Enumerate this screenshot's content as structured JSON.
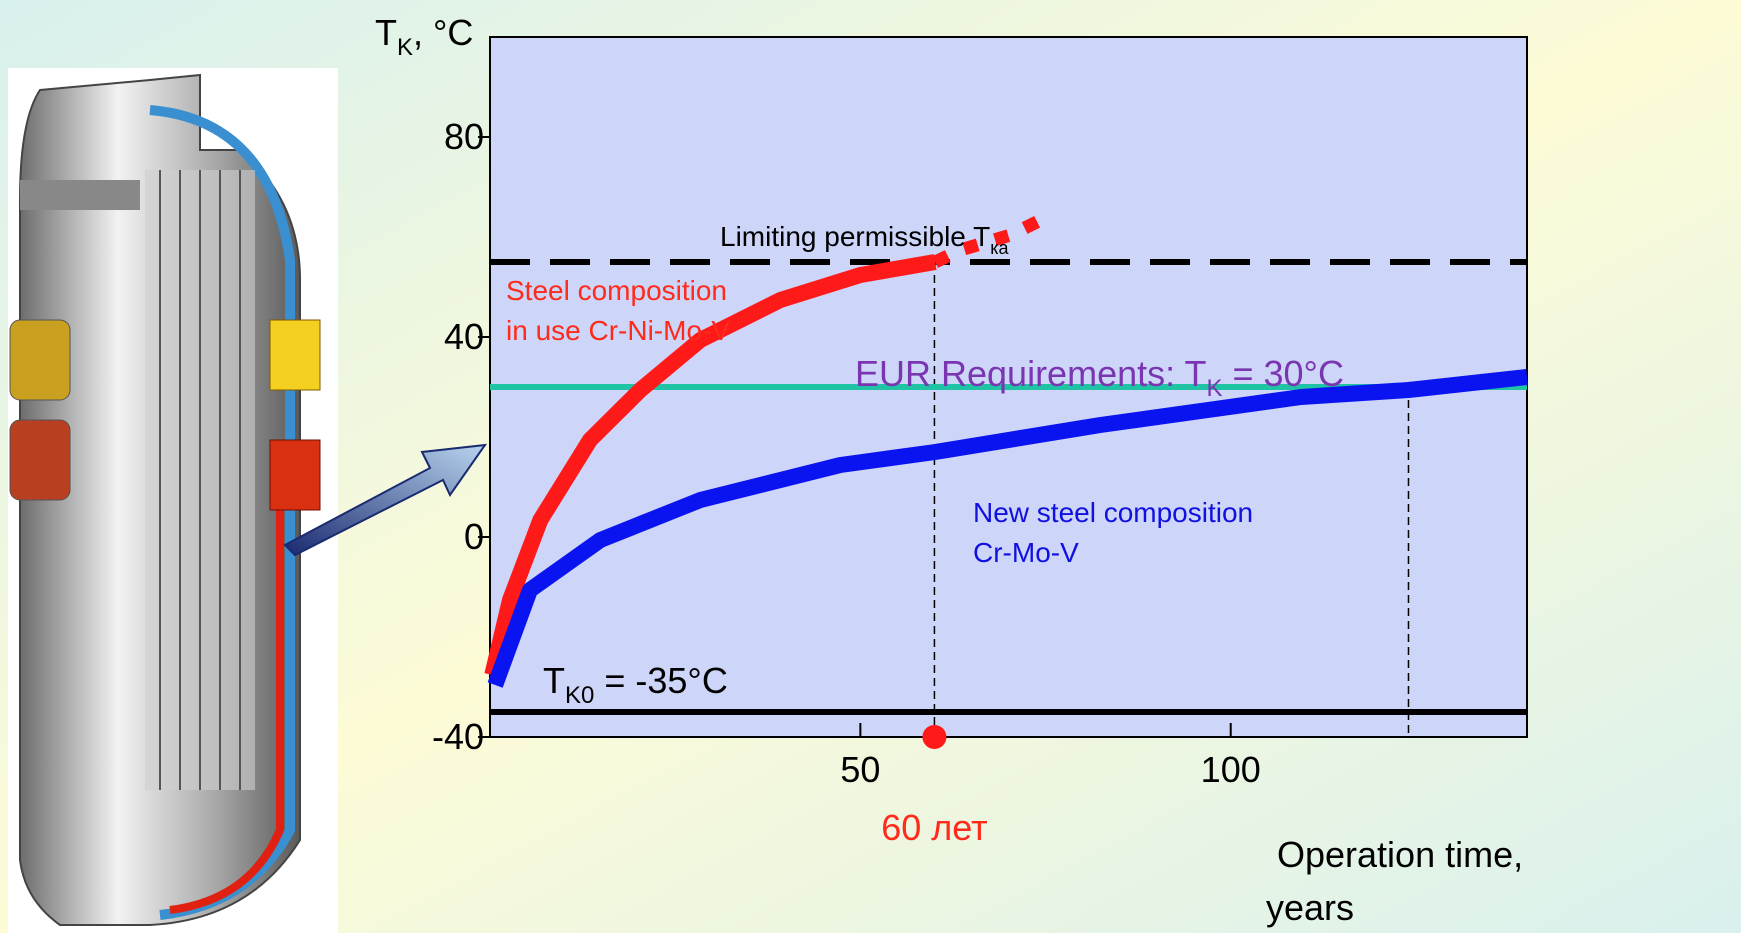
{
  "chart_data": {
    "type": "line",
    "y_label": {
      "main": "T",
      "sub": "K",
      "rest": ", °C"
    },
    "x_label": [
      "Operation time,",
      "years"
    ],
    "xlim": [
      0,
      140
    ],
    "ylim": [
      -40,
      100
    ],
    "xticks": [
      50,
      100
    ],
    "yticks": [
      -40,
      0,
      40,
      80
    ],
    "series": [
      {
        "color": "#ff1a1a",
        "style": "solid",
        "x": [
          0.3,
          2.7,
          6.8,
          13.5,
          20.3,
          28.4,
          39.2,
          50,
          60.1
        ],
        "values": [
          -27.6,
          -12.6,
          3.4,
          19.4,
          29.4,
          39.4,
          47.4,
          52.4,
          55
        ]
      },
      {
        "color": "#ff1a1a",
        "style": "dotted",
        "x": [
          60.1,
          63.5,
          70.3,
          75.7
        ],
        "values": [
          55,
          57.4,
          60.4,
          64.4
        ]
      },
      {
        "color": "#0a14f0",
        "style": "solid",
        "x": [
          0.7,
          5.4,
          14.9,
          28.4,
          47.3,
          60.1,
          82.4,
          109.5,
          124,
          140
        ],
        "values": [
          -29.6,
          -10.6,
          -0.6,
          7.4,
          14.4,
          17,
          22.4,
          28,
          29.4,
          32
        ]
      }
    ],
    "hlines": [
      {
        "value": 55,
        "color": "#000000",
        "style": "dashed",
        "label": {
          "main": "Limiting permissible T",
          "sub": "ка"
        }
      },
      {
        "value": 30,
        "color": "#1fc4a4",
        "style": "solid",
        "label": {
          "main": "EUR Requirements: T",
          "sub": "K",
          "rest": " = 30°C"
        }
      },
      {
        "value": -35,
        "color": "#000000",
        "style": "solid",
        "label": {
          "main": "T",
          "sub": "K0",
          "rest": " = -35°C"
        }
      }
    ],
    "vlines": [
      60,
      124
    ],
    "marker": {
      "x": 60,
      "label": "60 лет"
    },
    "annotations": [
      {
        "color": "#ff2a1a",
        "lines": [
          "Steel composition",
          "in use Cr-Ni-Mo-V"
        ]
      },
      {
        "color": "#1010e0",
        "lines": [
          "New steel composition",
          "Cr-Mo-V"
        ]
      }
    ]
  }
}
